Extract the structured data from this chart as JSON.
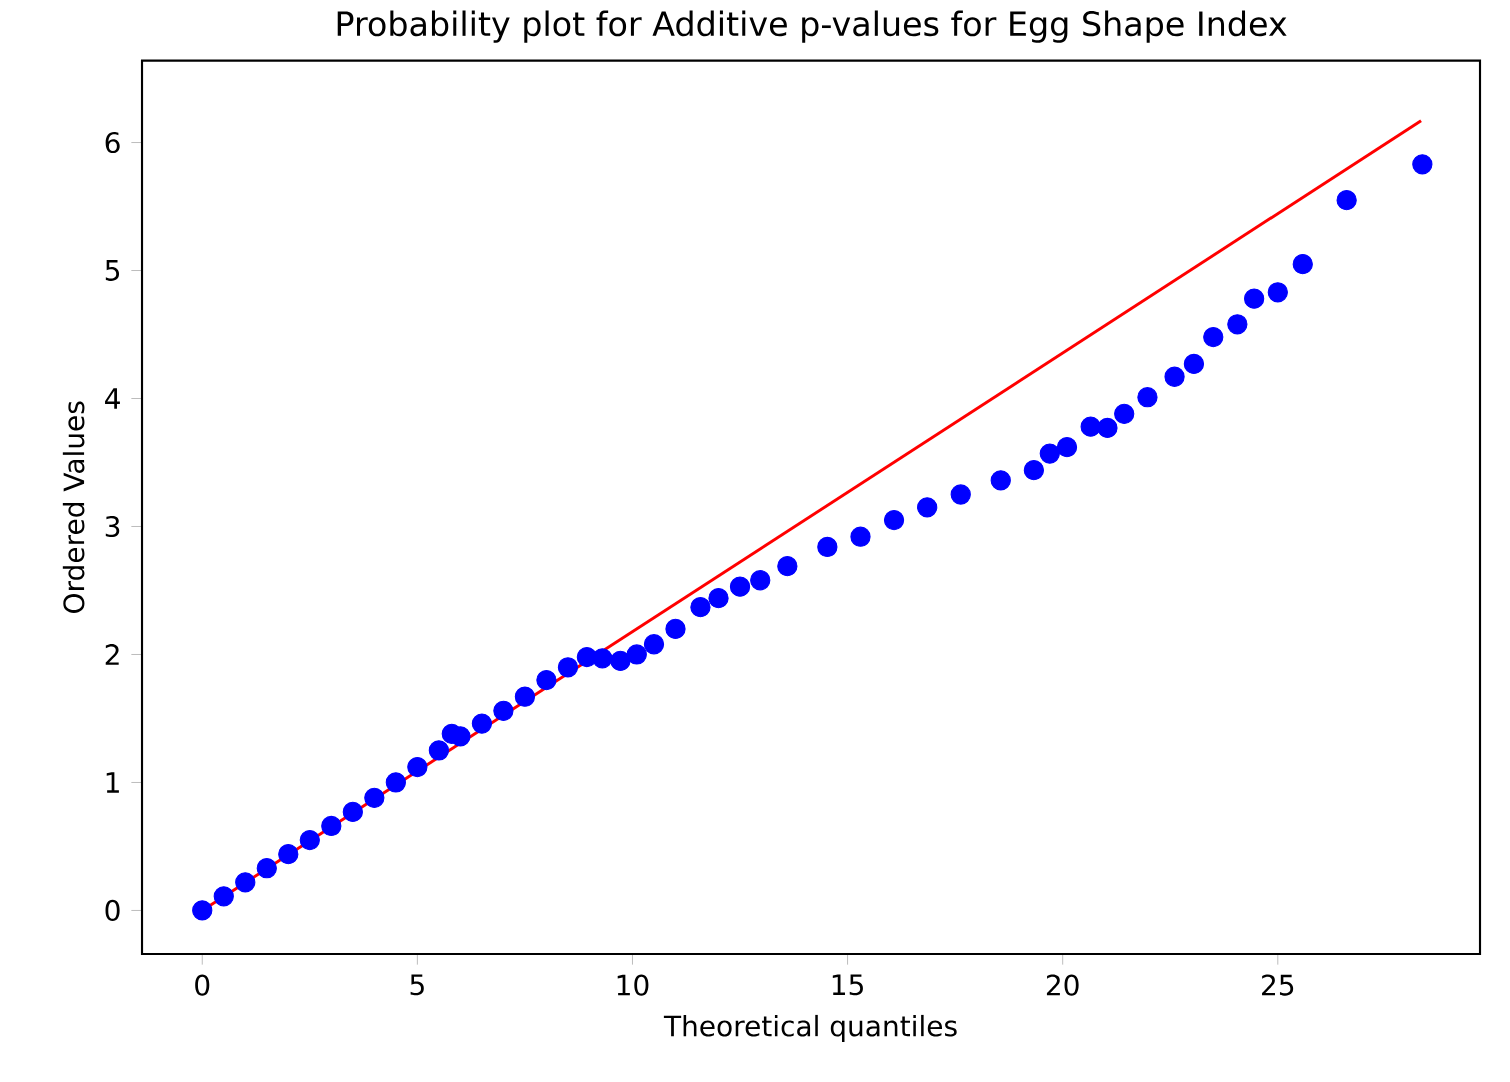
{
  "chart_data": {
    "type": "scatter",
    "title": "Probability plot for Additive p-values for Egg Shape Index",
    "xlabel": "Theoretical quantiles",
    "ylabel": "Ordered Values",
    "xlim": [
      -1.4,
      29.7
    ],
    "ylim": [
      -0.34,
      6.64
    ],
    "xticks": [
      0,
      5,
      10,
      15,
      20,
      25
    ],
    "yticks": [
      0,
      1,
      2,
      3,
      4,
      5,
      6
    ],
    "grid": false,
    "series": [
      {
        "color": "#0000ff",
        "marker": "circle",
        "x": [
          0,
          0.5,
          1,
          1.5,
          2,
          2.5,
          3,
          3.5,
          4,
          4.5,
          5,
          5.5,
          5.8,
          6,
          6.5,
          7,
          7.5,
          8,
          8.5,
          8.94,
          9.3,
          9.72,
          10.1,
          10.5,
          11,
          11.58,
          12,
          12.5,
          12.97,
          13.6,
          14.53,
          15.3,
          16.08,
          16.85,
          17.63,
          18.56,
          19.33,
          19.7,
          20.1,
          20.65,
          21.04,
          21.43,
          21.97,
          22.6,
          23.05,
          23.5,
          24.06,
          24.45,
          25.0,
          25.58,
          26.6,
          28.36
        ],
        "values": [
          0,
          0.11,
          0.22,
          0.33,
          0.44,
          0.55,
          0.66,
          0.77,
          0.88,
          1.0,
          1.12,
          1.25,
          1.38,
          1.36,
          1.46,
          1.56,
          1.67,
          1.8,
          1.9,
          1.98,
          1.97,
          1.95,
          2.0,
          2.08,
          2.2,
          2.37,
          2.44,
          2.53,
          2.58,
          2.69,
          2.84,
          2.92,
          3.05,
          3.15,
          3.25,
          3.36,
          3.44,
          3.57,
          3.62,
          3.78,
          3.77,
          3.88,
          4.01,
          4.17,
          4.27,
          4.48,
          4.58,
          4.78,
          4.83,
          5.05,
          5.55,
          5.83
        ]
      },
      {
        "type": "line",
        "color": "#ff0000",
        "marker": "none",
        "line_style": "solid",
        "x": [
          0,
          28.33
        ],
        "values": [
          0,
          6.17
        ]
      }
    ]
  }
}
